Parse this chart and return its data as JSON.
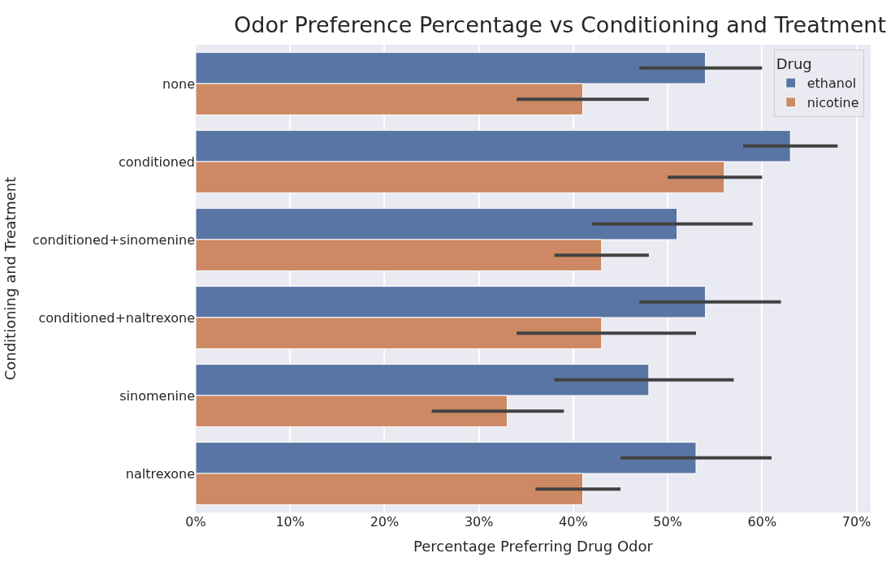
{
  "chart_data": {
    "type": "bar",
    "orientation": "horizontal",
    "title": "Odor Preference Percentage vs Conditioning and Treatment",
    "xlabel": "Percentage Preferring Drug Odor",
    "ylabel": "Conditioning and Treatment",
    "legend_title": "Drug",
    "legend": "top right",
    "grid": "x",
    "categories": [
      "none",
      "conditioned",
      "conditioned+sinomenine",
      "conditioned+naltrexone",
      "sinomenine",
      "naltrexone"
    ],
    "xlim": [
      0,
      71.5
    ],
    "xticks": [
      {
        "value": 0,
        "label": "0%"
      },
      {
        "value": 10,
        "label": "10%"
      },
      {
        "value": 20,
        "label": "20%"
      },
      {
        "value": 30,
        "label": "30%"
      },
      {
        "value": 40,
        "label": "40%"
      },
      {
        "value": 50,
        "label": "50%"
      },
      {
        "value": 60,
        "label": "60%"
      },
      {
        "value": 70,
        "label": "70%"
      }
    ],
    "series": [
      {
        "name": "ethanol",
        "color": "#5975a4",
        "values": [
          54,
          63,
          51,
          54,
          48,
          53
        ],
        "errors": [
          [
            47,
            60
          ],
          [
            58,
            68
          ],
          [
            42,
            59
          ],
          [
            47,
            62
          ],
          [
            38,
            57
          ],
          [
            45,
            61
          ]
        ]
      },
      {
        "name": "nicotine",
        "color": "#cc8963",
        "values": [
          41,
          56,
          43,
          43,
          33,
          41
        ],
        "errors": [
          [
            34,
            48
          ],
          [
            50,
            60
          ],
          [
            38,
            48
          ],
          [
            34,
            53
          ],
          [
            25,
            39
          ],
          [
            36,
            45
          ]
        ]
      }
    ]
  }
}
